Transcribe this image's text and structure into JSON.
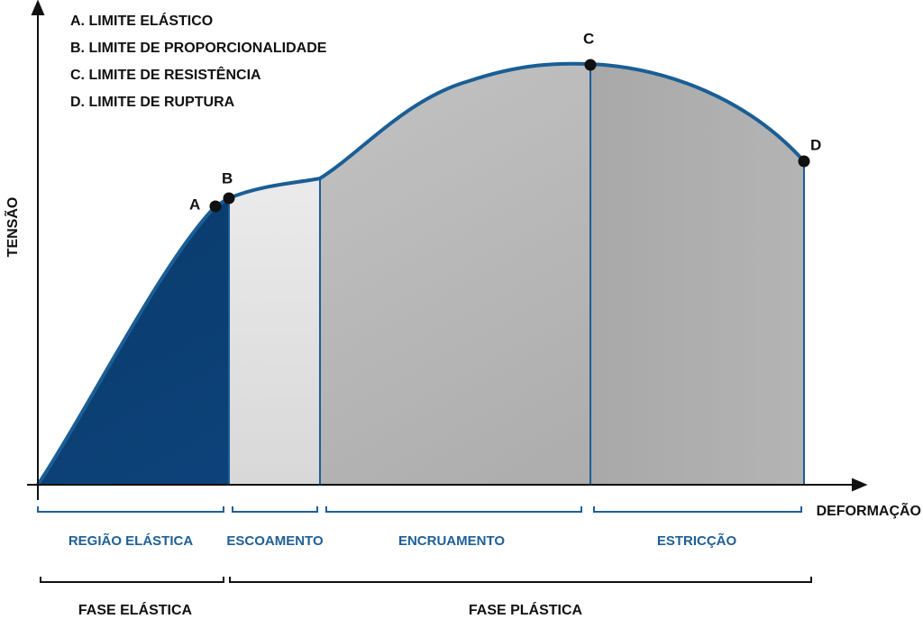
{
  "legend": [
    "A. LIMITE ELÁSTICO",
    "B. LIMITE DE PROPORCIONALIDADE",
    "C. LIMITE DE RESISTÊNCIA",
    "D. LIMITE DE RUPTURA"
  ],
  "axes": {
    "y": "TENSÃO",
    "x": "DEFORMAÇÃO"
  },
  "points": [
    "A",
    "B",
    "C",
    "D"
  ],
  "regions": [
    "REGIÃO ELÁSTICA",
    "ESCOAMENTO",
    "ENCRUAMENTO",
    "ESTRICÇÃO"
  ],
  "phases": [
    "FASE ELÁSTICA",
    "FASE PLÁSTICA"
  ]
}
